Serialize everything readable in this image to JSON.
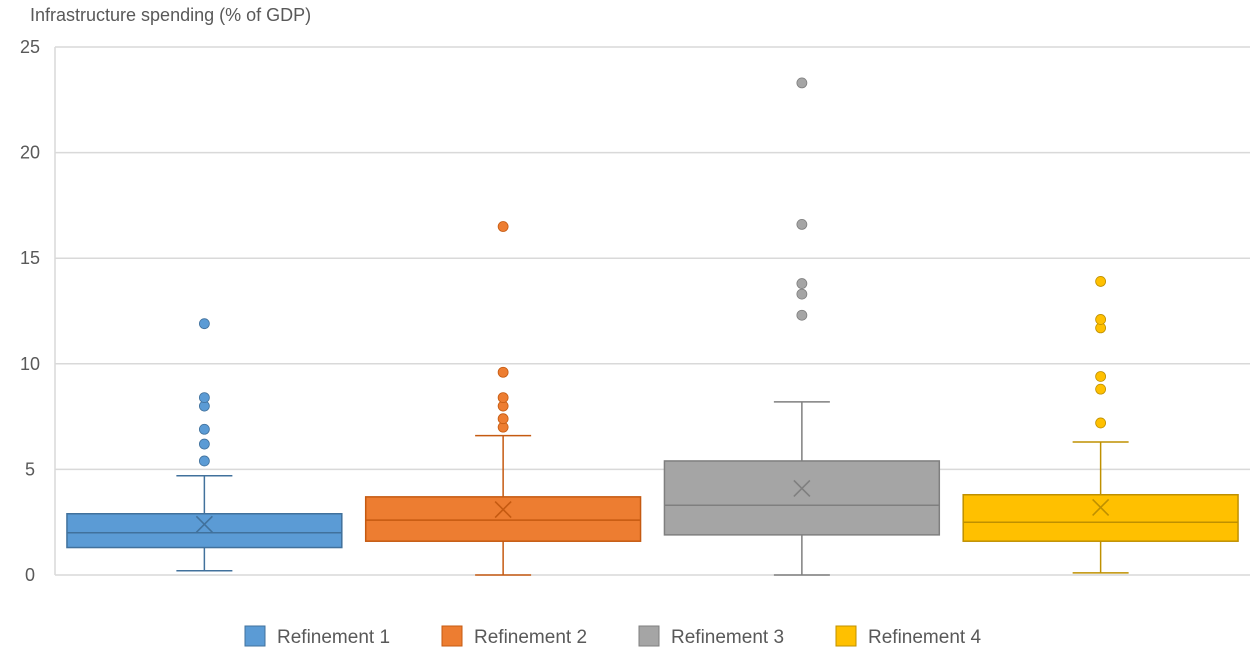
{
  "chart_data": {
    "type": "box",
    "ylabel": "Infrastructure spending (% of GDP)",
    "ylim": [
      0,
      25
    ],
    "yticks": [
      0,
      5,
      10,
      15,
      20,
      25
    ],
    "grid": true,
    "legend_position": "bottom-center",
    "series": [
      {
        "name": "Refinement 1",
        "color": "#5B9BD5",
        "stroke": "#41719C",
        "whisker_low": 0.2,
        "q1": 1.3,
        "median": 2.0,
        "q3": 2.9,
        "whisker_high": 4.7,
        "mean": 2.4,
        "outliers": [
          5.4,
          6.2,
          6.9,
          8.0,
          8.4,
          11.9
        ]
      },
      {
        "name": "Refinement 2",
        "color": "#ED7D31",
        "stroke": "#C55A11",
        "whisker_low": 0.0,
        "q1": 1.6,
        "median": 2.6,
        "q3": 3.7,
        "whisker_high": 6.6,
        "mean": 3.1,
        "outliers": [
          7.0,
          7.4,
          8.0,
          8.4,
          9.6,
          16.5
        ]
      },
      {
        "name": "Refinement 3",
        "color": "#A5A5A5",
        "stroke": "#7F7F7F",
        "whisker_low": 0.0,
        "q1": 1.9,
        "median": 3.3,
        "q3": 5.4,
        "whisker_high": 8.2,
        "mean": 4.1,
        "outliers": [
          12.3,
          13.3,
          13.8,
          16.6,
          23.3
        ]
      },
      {
        "name": "Refinement 4",
        "color": "#FFC000",
        "stroke": "#BF9000",
        "whisker_low": 0.1,
        "q1": 1.6,
        "median": 2.5,
        "q3": 3.8,
        "whisker_high": 6.3,
        "mean": 3.2,
        "outliers": [
          7.2,
          8.8,
          9.4,
          11.7,
          12.1,
          13.9
        ]
      }
    ]
  }
}
